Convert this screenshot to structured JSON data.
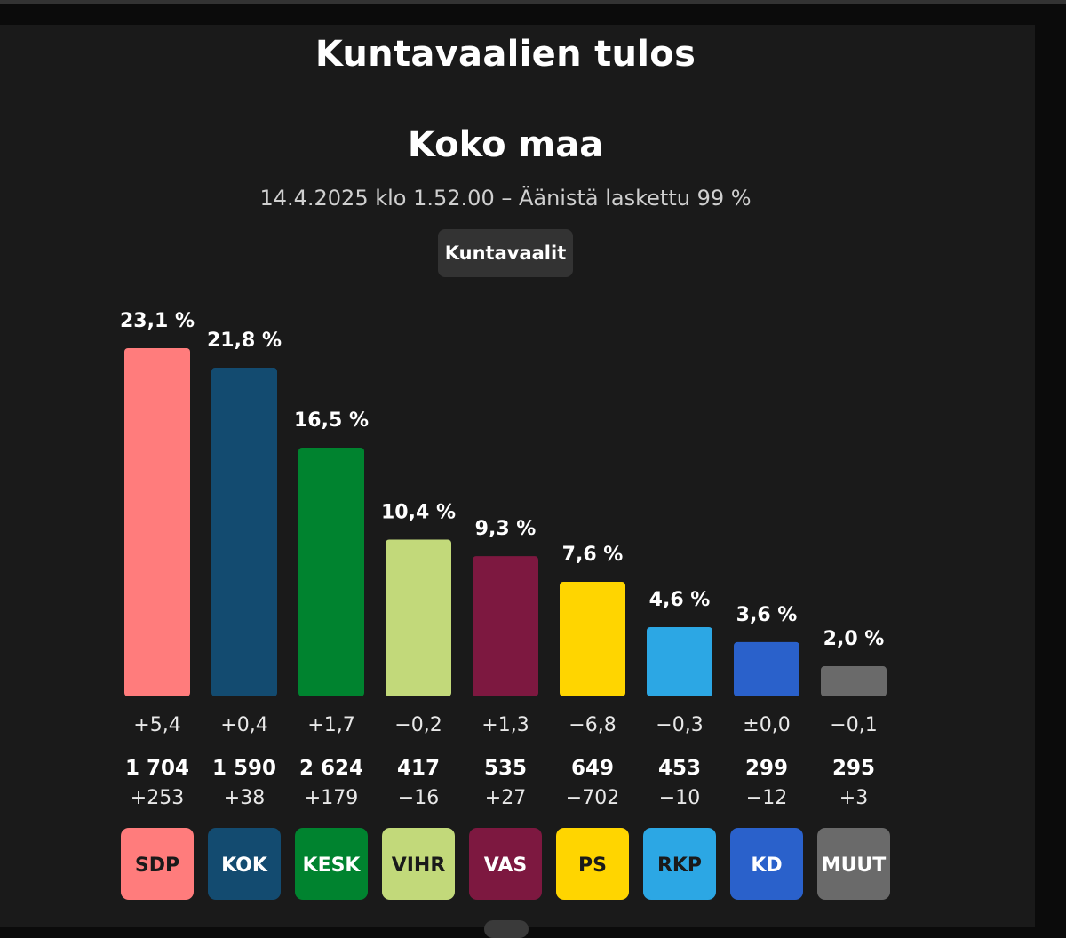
{
  "header": {
    "title": "Kuntavaalien tulos",
    "area": "Koko maa",
    "subtitle": "14.4.2025 klo 1.52.00 – Äänistä laskettu 99 %",
    "button_label": "Kuntavaalit"
  },
  "chart_data": {
    "type": "bar",
    "title": "",
    "xlabel": "",
    "ylabel": "",
    "ylim": [
      0,
      23.1
    ],
    "grid": false,
    "categories": [
      "SDP",
      "KOK",
      "KESK",
      "VIHR",
      "VAS",
      "PS",
      "RKP",
      "KD",
      "MUUT"
    ],
    "values": [
      23.1,
      21.8,
      16.5,
      10.4,
      9.3,
      7.6,
      4.6,
      3.6,
      2.0
    ],
    "value_labels": [
      "23,1 %",
      "21,8 %",
      "16,5 %",
      "10,4 %",
      "9,3 %",
      "7,6 %",
      "4,6 %",
      "3,6 %",
      "2,0 %"
    ],
    "change_labels": [
      "+5,4",
      "+0,4",
      "+1,7",
      "−0,2",
      "+1,3",
      "−6,8",
      "−0,3",
      "±0,0",
      "−0,1"
    ],
    "seats_labels": [
      "1 704",
      "1 590",
      "2 624",
      "417",
      "535",
      "649",
      "453",
      "299",
      "295"
    ],
    "seat_change_labels": [
      "+253",
      "+38",
      "+179",
      "−16",
      "+27",
      "−702",
      "−10",
      "−12",
      "+3"
    ],
    "colors": [
      "#FF7C7C",
      "#134B70",
      "#00832F",
      "#C2D97A",
      "#7D1840",
      "#FFD500",
      "#2CA7E4",
      "#2A61CB",
      "#6A6A6A"
    ],
    "label_colors": [
      "#1a1a1a",
      "#ffffff",
      "#ffffff",
      "#1a1a1a",
      "#ffffff",
      "#1a1a1a",
      "#1a1a1a",
      "#ffffff",
      "#ffffff"
    ]
  }
}
